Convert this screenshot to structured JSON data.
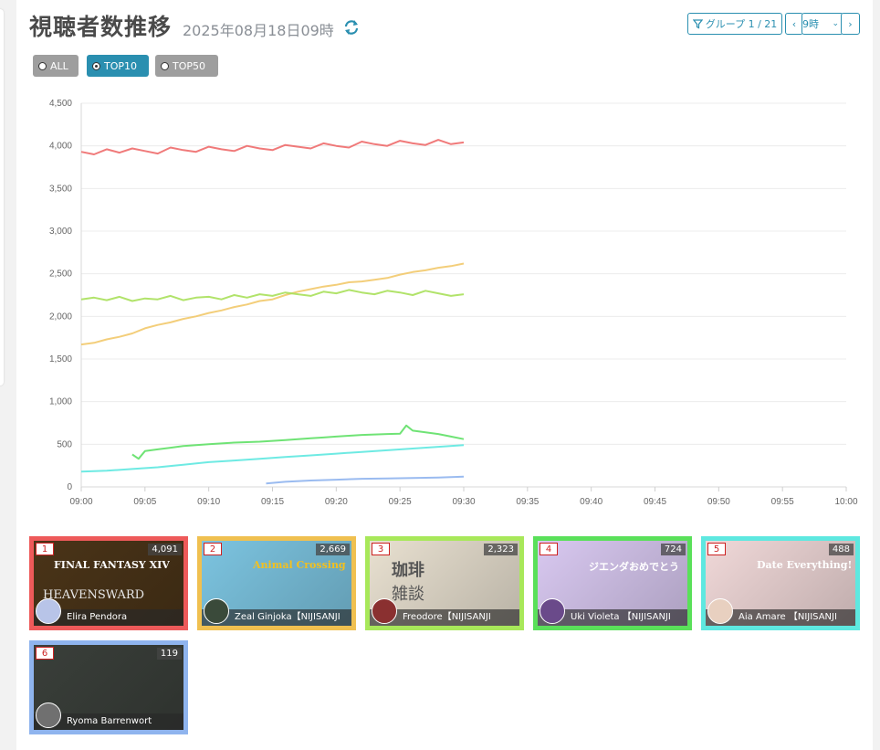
{
  "header": {
    "title": "視聴者数推移",
    "subtitle": "2025年08月18日09時",
    "group_label": "グループ 1 / 21",
    "hour_value": "9時"
  },
  "filters": [
    {
      "label": "ALL",
      "selected": false
    },
    {
      "label": "TOP10",
      "selected": true
    },
    {
      "label": "TOP50",
      "selected": false
    }
  ],
  "colors": {
    "accent": "#2a8fb0",
    "selected_filter": "#2a8fb0",
    "filter_bg": "#9e9e9e"
  },
  "chart_data": {
    "type": "line",
    "x_tick_labels": [
      "09:00",
      "09:05",
      "09:10",
      "09:15",
      "09:20",
      "09:25",
      "09:30",
      "09:35",
      "09:40",
      "09:45",
      "09:50",
      "09:55",
      "10:00"
    ],
    "y_tick_labels": [
      "0",
      "500",
      "1,000",
      "1,500",
      "2,000",
      "2,500",
      "3,000",
      "3,500",
      "4,000",
      "4,500"
    ],
    "xlim_minutes": [
      0,
      60
    ],
    "ylim": [
      0,
      4500
    ],
    "grid": true,
    "series": [
      {
        "color": "#ee6b6b",
        "x_minutes": [
          0,
          1,
          2,
          3,
          4,
          5,
          6,
          7,
          8,
          9,
          10,
          11,
          12,
          13,
          14,
          15,
          16,
          17,
          18,
          19,
          20,
          21,
          22,
          23,
          24,
          25,
          26,
          27,
          28,
          29,
          30
        ],
        "values": [
          3930,
          3900,
          3960,
          3920,
          3970,
          3940,
          3910,
          3980,
          3950,
          3930,
          3990,
          3960,
          3940,
          4000,
          3970,
          3950,
          4010,
          3990,
          3970,
          4030,
          4000,
          3980,
          4050,
          4020,
          4000,
          4060,
          4030,
          4010,
          4070,
          4020,
          4040
        ]
      },
      {
        "color": "#f2c96b",
        "x_minutes": [
          0,
          1,
          2,
          3,
          4,
          5,
          6,
          7,
          8,
          9,
          10,
          11,
          12,
          13,
          14,
          15,
          16,
          17,
          18,
          19,
          20,
          21,
          22,
          23,
          24,
          25,
          26,
          27,
          28,
          29,
          30
        ],
        "values": [
          1670,
          1690,
          1730,
          1760,
          1800,
          1860,
          1900,
          1930,
          1970,
          2000,
          2040,
          2070,
          2110,
          2140,
          2180,
          2200,
          2250,
          2290,
          2320,
          2350,
          2370,
          2400,
          2410,
          2430,
          2450,
          2490,
          2520,
          2540,
          2570,
          2590,
          2620
        ]
      },
      {
        "color": "#a8e05a",
        "x_minutes": [
          0,
          1,
          2,
          3,
          4,
          5,
          6,
          7,
          8,
          9,
          10,
          11,
          12,
          13,
          14,
          15,
          16,
          17,
          18,
          19,
          20,
          21,
          22,
          23,
          24,
          25,
          26,
          27,
          28,
          29,
          30
        ],
        "values": [
          2200,
          2220,
          2190,
          2230,
          2180,
          2210,
          2200,
          2240,
          2190,
          2220,
          2230,
          2200,
          2250,
          2220,
          2260,
          2240,
          2280,
          2260,
          2240,
          2290,
          2270,
          2310,
          2280,
          2260,
          2300,
          2280,
          2250,
          2300,
          2270,
          2240,
          2260
        ]
      },
      {
        "color": "#5fe066",
        "x_minutes": [
          4,
          4.5,
          5,
          6,
          7,
          8,
          9,
          10,
          11,
          12,
          13,
          14,
          15,
          16,
          17,
          18,
          19,
          20,
          21,
          22,
          23,
          24,
          25,
          25.5,
          26,
          27,
          28,
          29,
          30
        ],
        "values": [
          380,
          330,
          420,
          440,
          460,
          480,
          490,
          500,
          510,
          520,
          525,
          530,
          540,
          550,
          560,
          570,
          580,
          590,
          600,
          610,
          615,
          620,
          625,
          720,
          660,
          640,
          620,
          590,
          560
        ]
      },
      {
        "color": "#5ee8e0",
        "x_minutes": [
          0,
          2,
          4,
          6,
          8,
          10,
          12,
          14,
          16,
          18,
          20,
          22,
          24,
          26,
          28,
          30
        ],
        "values": [
          180,
          190,
          210,
          230,
          260,
          290,
          310,
          330,
          350,
          370,
          390,
          410,
          430,
          450,
          470,
          490
        ]
      },
      {
        "color": "#8fb4ee",
        "x_minutes": [
          14.5,
          16,
          18,
          20,
          22,
          24,
          26,
          28,
          30
        ],
        "values": [
          40,
          60,
          75,
          85,
          95,
          100,
          105,
          110,
          120
        ]
      }
    ]
  },
  "cards": [
    {
      "rank": "1",
      "count": "4,091",
      "name": "Elira Pendora",
      "border": "#ee5a5a",
      "thumb_bg": "#4a3418",
      "thumb_text": "FINAL FANTASY XIV",
      "thumb_sub": "HEAVENSWARD",
      "avatar": "#b8c4e8"
    },
    {
      "rank": "2",
      "count": "2,669",
      "name": "Zeal Ginjoka【NIJISANJI",
      "border": "#f0c050",
      "thumb_bg": "#7cc4e0",
      "thumb_text": "Animal Crossing",
      "thumb_sub": "",
      "avatar": "#3a4a3a"
    },
    {
      "rank": "3",
      "count": "2,323",
      "name": "Freodore【NIJISANJI",
      "border": "#a8e85a",
      "thumb_bg": "#e8e0d0",
      "thumb_text": "珈琲",
      "thumb_sub": "雑談",
      "avatar": "#8a3030"
    },
    {
      "rank": "4",
      "count": "724",
      "name": "Uki Violeta 【NIJISANJI",
      "border": "#5ae05a",
      "thumb_bg": "#d8c8f0",
      "thumb_text": "ジエンダおめでとう",
      "thumb_sub": "",
      "avatar": "#6a4a8a"
    },
    {
      "rank": "5",
      "count": "488",
      "name": "Aia Amare 【NIJISANJI",
      "border": "#5ee8e0",
      "thumb_bg": "#f0d8d8",
      "thumb_text": "Date Everything!",
      "thumb_sub": "",
      "avatar": "#e8d0c0"
    },
    {
      "rank": "6",
      "count": "119",
      "name": "Ryoma Barrenwort",
      "border": "#8fb4ee",
      "thumb_bg": "#3a3f3a",
      "thumb_text": "",
      "thumb_sub": "",
      "avatar": "#707070"
    }
  ]
}
